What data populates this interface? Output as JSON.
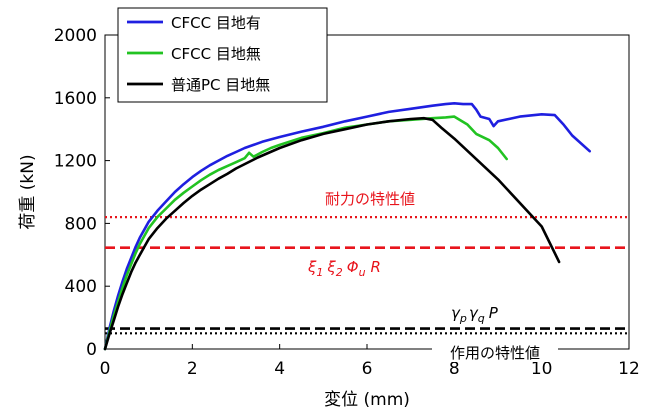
{
  "chart_data": {
    "type": "line",
    "xlabel": "変位 (mm)",
    "ylabel": "荷重 (kN)",
    "xlim": [
      0,
      12
    ],
    "ylim": [
      0,
      2000
    ],
    "xticks": [
      "0",
      "2",
      "4",
      "6",
      "8",
      "10",
      "12"
    ],
    "yticks": [
      "0",
      "400",
      "800",
      "1200",
      "1600",
      "2000"
    ],
    "grid": false,
    "legend_position": "top-left",
    "series": [
      {
        "name": "CFCC 目地有",
        "color": "#1f1fe0",
        "x": [
          0,
          0.1,
          0.2,
          0.3,
          0.4,
          0.5,
          0.6,
          0.7,
          0.8,
          0.9,
          1.0,
          1.2,
          1.4,
          1.6,
          1.8,
          2.0,
          2.2,
          2.4,
          2.6,
          2.8,
          3.0,
          3.2,
          3.4,
          3.6,
          3.8,
          4.0,
          4.5,
          5.0,
          5.5,
          6.0,
          6.5,
          7.0,
          7.5,
          7.8,
          8.0,
          8.2,
          8.4,
          8.5,
          8.6,
          8.8,
          8.9,
          9.0,
          9.5,
          10.0,
          10.3,
          10.5,
          10.7,
          11.1
        ],
        "y": [
          0,
          130,
          240,
          340,
          430,
          510,
          580,
          650,
          710,
          760,
          810,
          880,
          940,
          1000,
          1050,
          1095,
          1135,
          1170,
          1200,
          1230,
          1255,
          1280,
          1300,
          1320,
          1335,
          1350,
          1385,
          1415,
          1450,
          1480,
          1510,
          1530,
          1550,
          1560,
          1565,
          1560,
          1560,
          1525,
          1480,
          1465,
          1420,
          1450,
          1480,
          1495,
          1490,
          1430,
          1360,
          1260
        ]
      },
      {
        "name": "CFCC 目地無",
        "color": "#22c322",
        "x": [
          0,
          0.1,
          0.2,
          0.3,
          0.4,
          0.5,
          0.6,
          0.7,
          0.8,
          0.9,
          1.0,
          1.2,
          1.4,
          1.6,
          1.8,
          2.0,
          2.2,
          2.4,
          2.6,
          2.8,
          3.0,
          3.2,
          3.3,
          3.4,
          3.6,
          3.8,
          4.0,
          4.5,
          5.0,
          5.5,
          6.0,
          6.5,
          7.0,
          7.5,
          7.8,
          8.0,
          8.3,
          8.5,
          8.8,
          9.0,
          9.2
        ],
        "y": [
          0,
          110,
          210,
          300,
          390,
          470,
          540,
          610,
          670,
          720,
          770,
          840,
          895,
          950,
          995,
          1035,
          1075,
          1110,
          1140,
          1165,
          1190,
          1215,
          1250,
          1225,
          1255,
          1280,
          1300,
          1345,
          1375,
          1410,
          1430,
          1450,
          1460,
          1470,
          1475,
          1480,
          1430,
          1370,
          1330,
          1280,
          1210
        ]
      },
      {
        "name": "普通PC 目地無",
        "color": "#000000",
        "x": [
          0,
          0.1,
          0.2,
          0.3,
          0.4,
          0.5,
          0.6,
          0.7,
          0.8,
          0.9,
          1.0,
          1.2,
          1.4,
          1.6,
          1.8,
          2.0,
          2.2,
          2.4,
          2.6,
          2.8,
          3.0,
          3.5,
          4.0,
          4.5,
          5.0,
          5.5,
          6.0,
          6.5,
          7.0,
          7.3,
          7.5,
          7.7,
          8.0,
          9.0,
          10.0,
          10.4
        ],
        "y": [
          0,
          95,
          180,
          270,
          350,
          420,
          490,
          550,
          600,
          650,
          700,
          770,
          830,
          880,
          930,
          975,
          1015,
          1050,
          1085,
          1115,
          1150,
          1220,
          1280,
          1330,
          1370,
          1400,
          1430,
          1450,
          1465,
          1470,
          1460,
          1410,
          1340,
          1080,
          780,
          555
        ]
      }
    ],
    "reference_lines": [
      {
        "label": "耐力の特性値",
        "y": 840,
        "color": "#e8141c",
        "style": "dotted"
      },
      {
        "label": "ξ1 ξ2 Φu R",
        "y": 645,
        "color": "#e8141c",
        "style": "dashed"
      },
      {
        "label": "γp γq P",
        "y": 130,
        "color": "#000000",
        "style": "dashed"
      },
      {
        "label": "作用の特性値",
        "y": 100,
        "color": "#000000",
        "style": "dotted"
      }
    ]
  },
  "annotations": {
    "resistance_label": "耐力の特性値",
    "action_label": "作用の特性値",
    "formula_r": {
      "xi1": "ξ",
      "s1": "1",
      "xi2": "ξ",
      "s2": "2",
      "phi": "Φ",
      "su": "u",
      "r": "R"
    },
    "formula_p": {
      "g1": "γ",
      "sp": "p",
      "g2": "γ",
      "sq": "q",
      "p": "P"
    }
  }
}
